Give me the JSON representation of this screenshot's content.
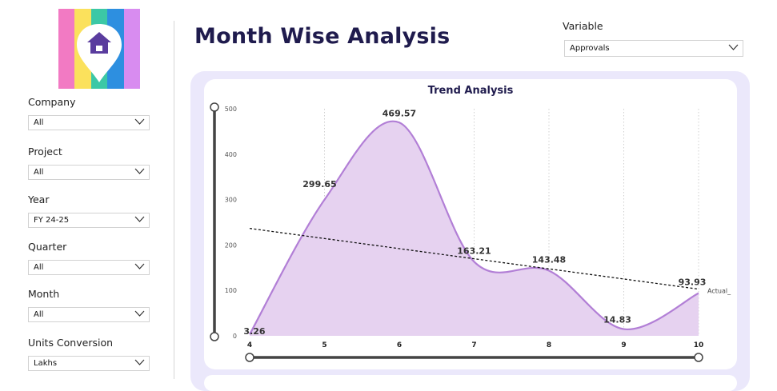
{
  "page": {
    "title": "Month Wise Analysis"
  },
  "filters": [
    {
      "key": "company",
      "label": "Company",
      "value": "All"
    },
    {
      "key": "project",
      "label": "Project",
      "value": "All"
    },
    {
      "key": "year",
      "label": "Year",
      "value": "FY 24-25"
    },
    {
      "key": "quarter",
      "label": "Quarter",
      "value": "All"
    },
    {
      "key": "month",
      "label": "Month",
      "value": "All"
    },
    {
      "key": "units",
      "label": "Units Conversion",
      "value": "Lakhs"
    }
  ],
  "variable": {
    "label": "Variable",
    "value": "Approvals"
  },
  "colors": {
    "title": "#1f1b4d",
    "area_fill": "#e6d2f0",
    "area_line": "#b27fd6",
    "panel_bg": "#ebe8fb"
  },
  "chart_data": {
    "type": "area",
    "title": "Trend Analysis",
    "x": [
      4,
      5,
      6,
      7,
      8,
      9,
      10
    ],
    "series": [
      {
        "name": "Actual_",
        "values": [
          3.26,
          299.65,
          469.57,
          163.21,
          143.48,
          14.83,
          93.93
        ]
      }
    ],
    "data_labels": [
      "3.26",
      "299.65",
      "469.57",
      "163.21",
      "143.48",
      "14.83",
      "93.93"
    ],
    "trendline": true,
    "ylim": [
      0,
      500
    ],
    "y_ticks": [
      0,
      100,
      200,
      300,
      400,
      500
    ],
    "grid": "vertical dotted"
  }
}
